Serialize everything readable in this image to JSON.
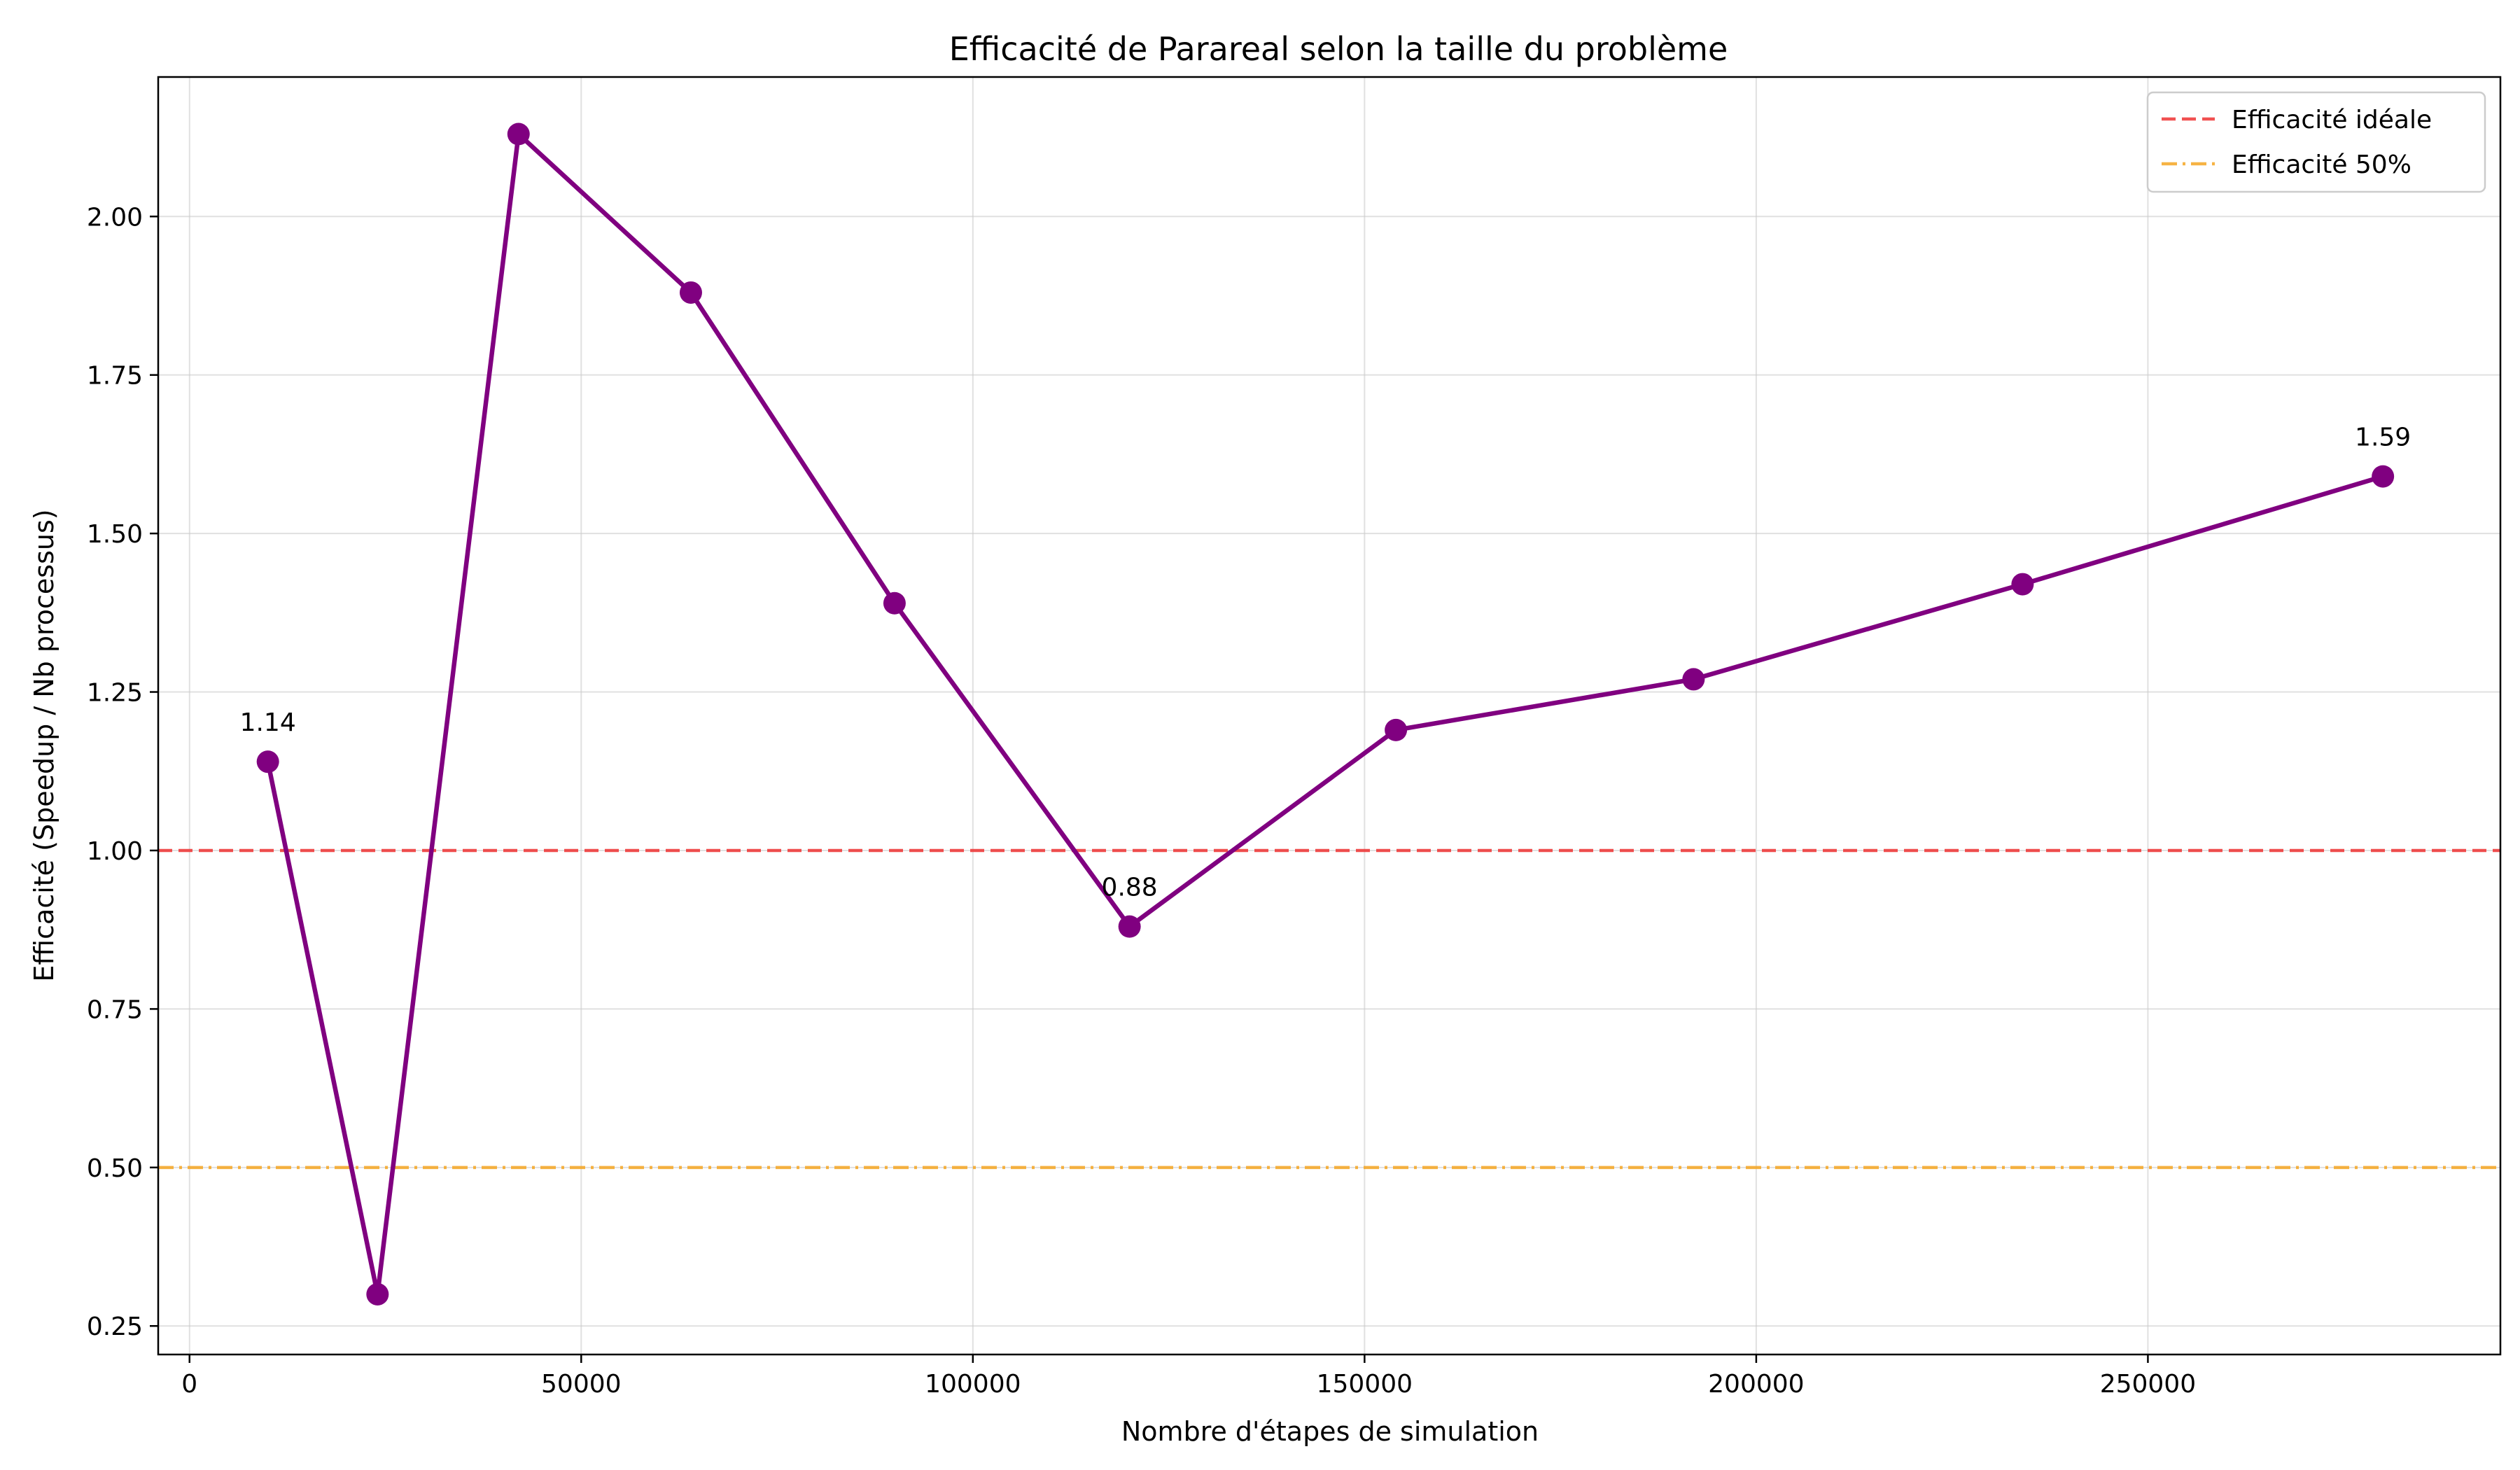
{
  "chart_data": {
    "type": "line",
    "title": "Efficacité de Parareal selon la taille du problème",
    "xlabel": "Nombre d'étapes de simulation",
    "ylabel": "Efficacité (Speedup / Nb processus)",
    "xlim": [
      -4000,
      295000
    ],
    "ylim": [
      0.205,
      2.22
    ],
    "xticks": [
      0,
      50000,
      100000,
      150000,
      200000,
      250000
    ],
    "xtick_labels": [
      "0",
      "50000",
      "100000",
      "150000",
      "200000",
      "250000"
    ],
    "yticks": [
      0.25,
      0.5,
      0.75,
      1.0,
      1.25,
      1.5,
      1.75,
      2.0
    ],
    "ytick_labels": [
      "0.25",
      "0.50",
      "0.75",
      "1.00",
      "1.25",
      "1.50",
      "1.75",
      "2.00"
    ],
    "grid": true,
    "legend_position": "top-right",
    "series": [
      {
        "color": "#800080",
        "marker": "circle",
        "x": [
          10000,
          24000,
          42000,
          64000,
          90000,
          120000,
          154000,
          192000,
          234000,
          280000
        ],
        "y": [
          1.14,
          0.3,
          2.13,
          1.88,
          1.39,
          0.88,
          1.19,
          1.27,
          1.42,
          1.59
        ]
      }
    ],
    "reference_lines": [
      {
        "name": "Efficacité idéale",
        "y": 1.0,
        "color": "#ee3333",
        "style": "dashed"
      },
      {
        "name": "Efficacité 50%",
        "y": 0.5,
        "color": "#f5a623",
        "style": "dashdot"
      }
    ],
    "annotations": [
      {
        "x": 10000,
        "y": 1.14,
        "text": "1.14"
      },
      {
        "x": 120000,
        "y": 0.88,
        "text": "0.88"
      },
      {
        "x": 280000,
        "y": 1.59,
        "text": "1.59"
      }
    ]
  }
}
